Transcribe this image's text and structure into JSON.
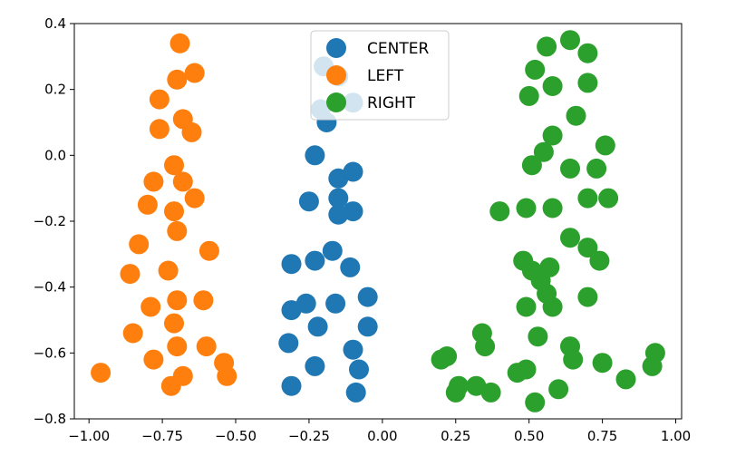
{
  "chart_data": {
    "type": "scatter",
    "title": "",
    "xlabel": "",
    "ylabel": "",
    "xlim": [
      -1.05,
      1.02
    ],
    "ylim": [
      -0.8,
      0.4
    ],
    "xticks": [
      -1.0,
      -0.75,
      -0.5,
      -0.25,
      0.0,
      0.25,
      0.5,
      0.75,
      1.0
    ],
    "xtick_labels": [
      "−1.00",
      "−0.75",
      "−0.50",
      "−0.25",
      "0.00",
      "0.25",
      "0.50",
      "0.75",
      "1.00"
    ],
    "yticks": [
      -0.8,
      -0.6,
      -0.4,
      -0.2,
      0.0,
      0.2,
      0.4
    ],
    "ytick_labels": [
      "−0.8",
      "−0.6",
      "−0.4",
      "−0.2",
      "0.0",
      "0.2",
      "0.4"
    ],
    "grid": false,
    "legend_position": "upper-center",
    "series": [
      {
        "name": "CENTER",
        "color": "#1f77b4",
        "points": [
          [
            -0.2,
            0.27
          ],
          [
            -0.15,
            0.24
          ],
          [
            -0.21,
            0.14
          ],
          [
            -0.1,
            0.16
          ],
          [
            -0.19,
            0.1
          ],
          [
            -0.23,
            0.0
          ],
          [
            -0.15,
            -0.07
          ],
          [
            -0.1,
            -0.05
          ],
          [
            -0.25,
            -0.14
          ],
          [
            -0.15,
            -0.13
          ],
          [
            -0.15,
            -0.18
          ],
          [
            -0.1,
            -0.17
          ],
          [
            -0.31,
            -0.33
          ],
          [
            -0.23,
            -0.32
          ],
          [
            -0.17,
            -0.29
          ],
          [
            -0.11,
            -0.34
          ],
          [
            -0.31,
            -0.47
          ],
          [
            -0.26,
            -0.45
          ],
          [
            -0.22,
            -0.52
          ],
          [
            -0.16,
            -0.45
          ],
          [
            -0.05,
            -0.43
          ],
          [
            -0.05,
            -0.52
          ],
          [
            -0.32,
            -0.57
          ],
          [
            -0.1,
            -0.59
          ],
          [
            -0.23,
            -0.64
          ],
          [
            -0.31,
            -0.7
          ],
          [
            -0.08,
            -0.65
          ],
          [
            -0.09,
            -0.72
          ]
        ]
      },
      {
        "name": "LEFT",
        "color": "#ff7f0e",
        "points": [
          [
            -0.69,
            0.34
          ],
          [
            -0.7,
            0.23
          ],
          [
            -0.64,
            0.25
          ],
          [
            -0.76,
            0.17
          ],
          [
            -0.68,
            0.11
          ],
          [
            -0.76,
            0.08
          ],
          [
            -0.65,
            0.07
          ],
          [
            -0.71,
            -0.03
          ],
          [
            -0.78,
            -0.08
          ],
          [
            -0.68,
            -0.08
          ],
          [
            -0.64,
            -0.13
          ],
          [
            -0.8,
            -0.15
          ],
          [
            -0.71,
            -0.17
          ],
          [
            -0.7,
            -0.23
          ],
          [
            -0.83,
            -0.27
          ],
          [
            -0.59,
            -0.29
          ],
          [
            -0.86,
            -0.36
          ],
          [
            -0.73,
            -0.35
          ],
          [
            -0.7,
            -0.44
          ],
          [
            -0.61,
            -0.44
          ],
          [
            -0.79,
            -0.46
          ],
          [
            -0.71,
            -0.51
          ],
          [
            -0.85,
            -0.54
          ],
          [
            -0.7,
            -0.58
          ],
          [
            -0.6,
            -0.58
          ],
          [
            -0.78,
            -0.62
          ],
          [
            -0.54,
            -0.63
          ],
          [
            -0.53,
            -0.67
          ],
          [
            -0.68,
            -0.67
          ],
          [
            -0.72,
            -0.7
          ],
          [
            -0.96,
            -0.66
          ]
        ]
      },
      {
        "name": "RIGHT",
        "color": "#2ca02c",
        "points": [
          [
            0.56,
            0.33
          ],
          [
            0.64,
            0.35
          ],
          [
            0.7,
            0.31
          ],
          [
            0.52,
            0.26
          ],
          [
            0.58,
            0.21
          ],
          [
            0.7,
            0.22
          ],
          [
            0.5,
            0.18
          ],
          [
            0.66,
            0.12
          ],
          [
            0.58,
            0.06
          ],
          [
            0.55,
            0.01
          ],
          [
            0.76,
            0.03
          ],
          [
            0.51,
            -0.03
          ],
          [
            0.64,
            -0.04
          ],
          [
            0.73,
            -0.04
          ],
          [
            0.58,
            -0.16
          ],
          [
            0.7,
            -0.13
          ],
          [
            0.77,
            -0.13
          ],
          [
            0.49,
            -0.16
          ],
          [
            0.4,
            -0.17
          ],
          [
            0.64,
            -0.25
          ],
          [
            0.7,
            -0.28
          ],
          [
            0.74,
            -0.32
          ],
          [
            0.48,
            -0.32
          ],
          [
            0.51,
            -0.35
          ],
          [
            0.57,
            -0.34
          ],
          [
            0.54,
            -0.38
          ],
          [
            0.56,
            -0.42
          ],
          [
            0.58,
            -0.46
          ],
          [
            0.49,
            -0.46
          ],
          [
            0.7,
            -0.43
          ],
          [
            0.34,
            -0.54
          ],
          [
            0.35,
            -0.58
          ],
          [
            0.53,
            -0.55
          ],
          [
            0.64,
            -0.58
          ],
          [
            0.65,
            -0.62
          ],
          [
            0.75,
            -0.63
          ],
          [
            0.93,
            -0.6
          ],
          [
            0.92,
            -0.64
          ],
          [
            0.83,
            -0.68
          ],
          [
            0.2,
            -0.62
          ],
          [
            0.22,
            -0.61
          ],
          [
            0.26,
            -0.7
          ],
          [
            0.32,
            -0.7
          ],
          [
            0.37,
            -0.72
          ],
          [
            0.25,
            -0.72
          ],
          [
            0.46,
            -0.66
          ],
          [
            0.49,
            -0.65
          ],
          [
            0.6,
            -0.71
          ],
          [
            0.52,
            -0.75
          ]
        ]
      }
    ]
  }
}
